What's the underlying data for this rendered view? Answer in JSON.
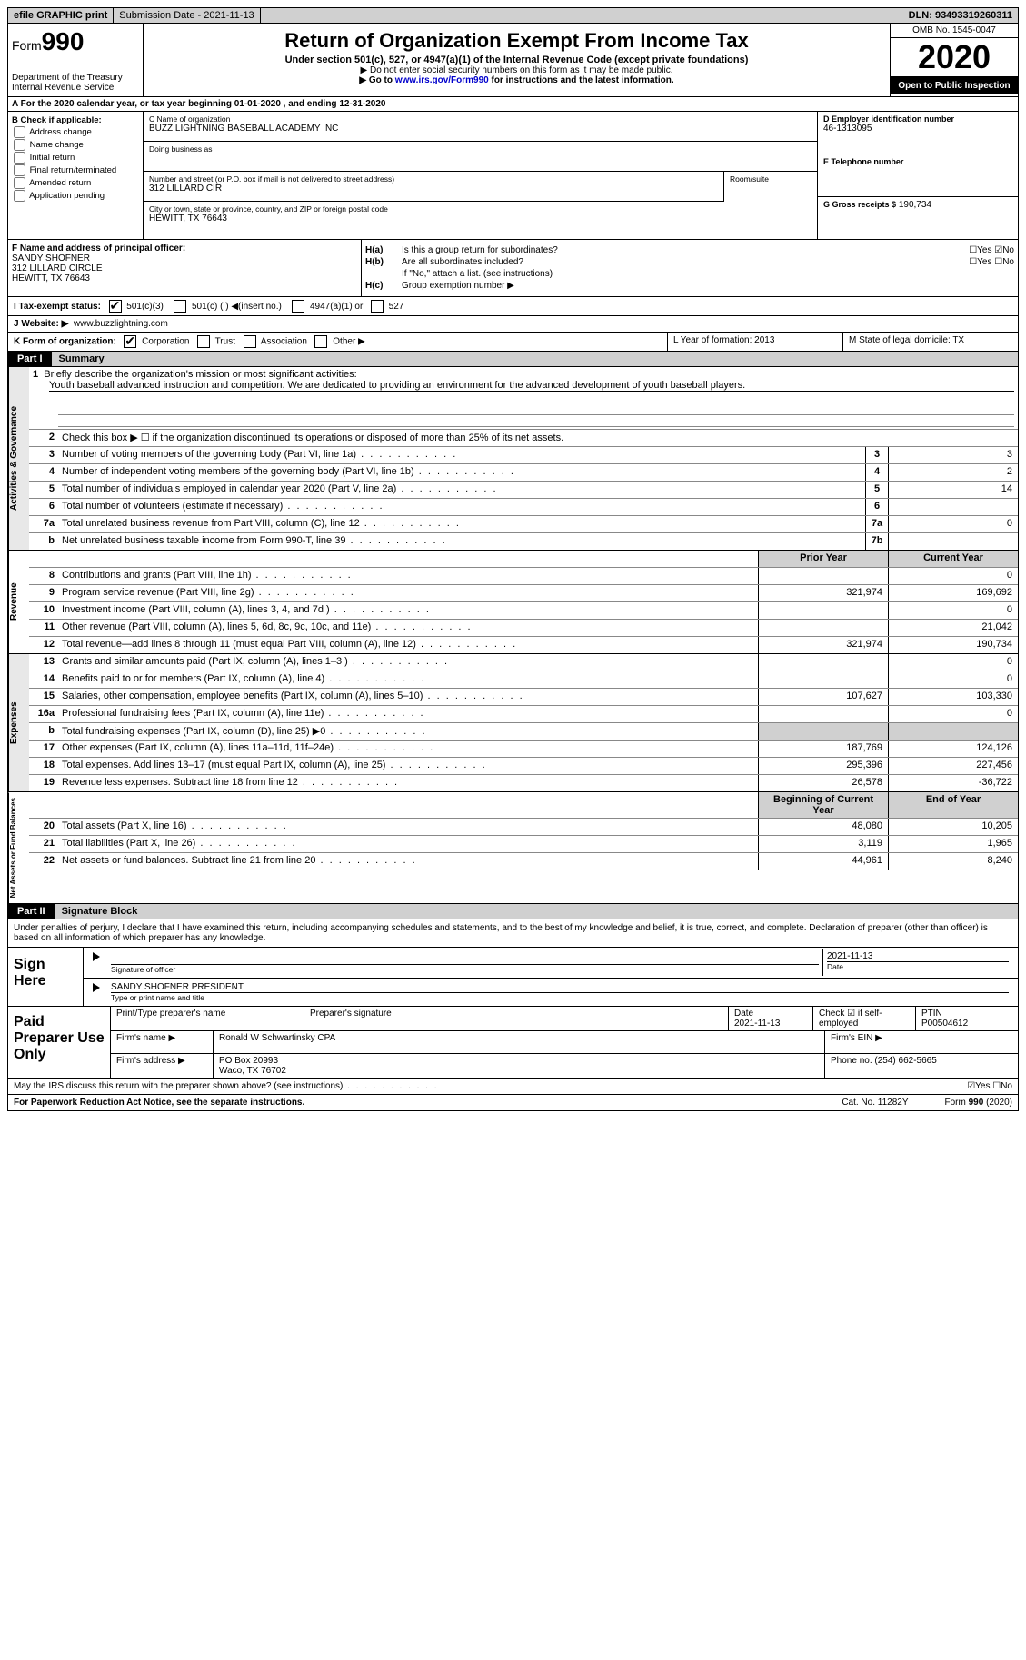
{
  "topbar": {
    "efile": "efile GRAPHIC print",
    "submission": "Submission Date - 2021-11-13",
    "dln": "DLN: 93493319260311"
  },
  "header": {
    "form_word": "Form",
    "form_num": "990",
    "dept": "Department of the Treasury\nInternal Revenue Service",
    "title": "Return of Organization Exempt From Income Tax",
    "sub": "Under section 501(c), 527, or 4947(a)(1) of the Internal Revenue Code (except private foundations)",
    "note1": "▶ Do not enter social security numbers on this form as it may be made public.",
    "note2_pre": "▶ Go to ",
    "note2_link": "www.irs.gov/Form990",
    "note2_post": " for instructions and the latest information.",
    "omb": "OMB No. 1545-0047",
    "year": "2020",
    "inspection": "Open to Public Inspection"
  },
  "row_a": "A For the 2020 calendar year, or tax year beginning 01-01-2020    , and ending 12-31-2020",
  "col_b": {
    "hdr": "B Check if applicable:",
    "items": [
      "Address change",
      "Name change",
      "Initial return",
      "Final return/terminated",
      "Amended return",
      "Application pending"
    ]
  },
  "col_c": {
    "name_lbl": "C Name of organization",
    "name": "BUZZ LIGHTNING BASEBALL ACADEMY INC",
    "dba_lbl": "Doing business as",
    "dba": "",
    "addr_lbl": "Number and street (or P.O. box if mail is not delivered to street address)",
    "addr": "312 LILLARD CIR",
    "room_lbl": "Room/suite",
    "city_lbl": "City or town, state or province, country, and ZIP or foreign postal code",
    "city": "HEWITT, TX  76643"
  },
  "col_d": {
    "ein_lbl": "D Employer identification number",
    "ein": "46-1313095",
    "tel_lbl": "E Telephone number",
    "tel": "",
    "gross_lbl": "G Gross receipts $",
    "gross": "190,734"
  },
  "col_f": {
    "lbl": "F  Name and address of principal officer:",
    "name": "SANDY SHOFNER",
    "addr1": "312 LILLARD CIRCLE",
    "addr2": "HEWITT, TX  76643"
  },
  "col_h": {
    "ha_lbl": "H(a)",
    "ha_txt": "Is this a group return for subordinates?",
    "ha_ans": "☐Yes  ☑No",
    "hb_lbl": "H(b)",
    "hb_txt": "Are all subordinates included?",
    "hb_ans": "☐Yes  ☐No",
    "hb_note": "If \"No,\" attach a list. (see instructions)",
    "hc_lbl": "H(c)",
    "hc_txt": "Group exemption number ▶"
  },
  "tax_status": {
    "lbl": "I   Tax-exempt status:",
    "o1": "501(c)(3)",
    "o2": "501(c) (  ) ◀(insert no.)",
    "o3": "4947(a)(1) or",
    "o4": "527"
  },
  "website": {
    "lbl": "J   Website: ▶",
    "val": "www.buzzlightning.com"
  },
  "k_row": {
    "lbl": "K Form of organization:",
    "o1": "Corporation",
    "o2": "Trust",
    "o3": "Association",
    "o4": "Other ▶"
  },
  "lm": {
    "l": "L Year of formation: 2013",
    "m": "M State of legal domicile: TX"
  },
  "part1": {
    "tag": "Part I",
    "title": "Summary"
  },
  "mission": {
    "num": "1",
    "lbl": "Briefly describe the organization's mission or most significant activities:",
    "txt": "Youth baseball advanced instruction and competition. We are dedicated to providing an environment for the advanced development of youth baseball players."
  },
  "line2": {
    "num": "2",
    "txt": "Check this box ▶ ☐  if the organization discontinued its operations or disposed of more than 25% of its net assets."
  },
  "gov_rows": [
    {
      "num": "3",
      "txt": "Number of voting members of the governing body (Part VI, line 1a)",
      "box": "3",
      "val": "3"
    },
    {
      "num": "4",
      "txt": "Number of independent voting members of the governing body (Part VI, line 1b)",
      "box": "4",
      "val": "2"
    },
    {
      "num": "5",
      "txt": "Total number of individuals employed in calendar year 2020 (Part V, line 2a)",
      "box": "5",
      "val": "14"
    },
    {
      "num": "6",
      "txt": "Total number of volunteers (estimate if necessary)",
      "box": "6",
      "val": ""
    },
    {
      "num": "7a",
      "txt": "Total unrelated business revenue from Part VIII, column (C), line 12",
      "box": "7a",
      "val": "0"
    },
    {
      "num": "b",
      "txt": "Net unrelated business taxable income from Form 990-T, line 39",
      "box": "7b",
      "val": ""
    }
  ],
  "col_hdr": {
    "prev": "Prior Year",
    "curr": "Current Year"
  },
  "rev_rows": [
    {
      "num": "8",
      "txt": "Contributions and grants (Part VIII, line 1h)",
      "prev": "",
      "curr": "0"
    },
    {
      "num": "9",
      "txt": "Program service revenue (Part VIII, line 2g)",
      "prev": "321,974",
      "curr": "169,692"
    },
    {
      "num": "10",
      "txt": "Investment income (Part VIII, column (A), lines 3, 4, and 7d )",
      "prev": "",
      "curr": "0"
    },
    {
      "num": "11",
      "txt": "Other revenue (Part VIII, column (A), lines 5, 6d, 8c, 9c, 10c, and 11e)",
      "prev": "",
      "curr": "21,042"
    },
    {
      "num": "12",
      "txt": "Total revenue—add lines 8 through 11 (must equal Part VIII, column (A), line 12)",
      "prev": "321,974",
      "curr": "190,734"
    }
  ],
  "exp_rows": [
    {
      "num": "13",
      "txt": "Grants and similar amounts paid (Part IX, column (A), lines 1–3 )",
      "prev": "",
      "curr": "0"
    },
    {
      "num": "14",
      "txt": "Benefits paid to or for members (Part IX, column (A), line 4)",
      "prev": "",
      "curr": "0"
    },
    {
      "num": "15",
      "txt": "Salaries, other compensation, employee benefits (Part IX, column (A), lines 5–10)",
      "prev": "107,627",
      "curr": "103,330"
    },
    {
      "num": "16a",
      "txt": "Professional fundraising fees (Part IX, column (A), line 11e)",
      "prev": "",
      "curr": "0"
    },
    {
      "num": "b",
      "txt": "Total fundraising expenses (Part IX, column (D), line 25) ▶0",
      "prev": "shade",
      "curr": "shade"
    },
    {
      "num": "17",
      "txt": "Other expenses (Part IX, column (A), lines 11a–11d, 11f–24e)",
      "prev": "187,769",
      "curr": "124,126"
    },
    {
      "num": "18",
      "txt": "Total expenses. Add lines 13–17 (must equal Part IX, column (A), line 25)",
      "prev": "295,396",
      "curr": "227,456"
    },
    {
      "num": "19",
      "txt": "Revenue less expenses. Subtract line 18 from line 12",
      "prev": "26,578",
      "curr": "-36,722"
    }
  ],
  "na_hdr": {
    "prev": "Beginning of Current Year",
    "curr": "End of Year"
  },
  "na_rows": [
    {
      "num": "20",
      "txt": "Total assets (Part X, line 16)",
      "prev": "48,080",
      "curr": "10,205"
    },
    {
      "num": "21",
      "txt": "Total liabilities (Part X, line 26)",
      "prev": "3,119",
      "curr": "1,965"
    },
    {
      "num": "22",
      "txt": "Net assets or fund balances. Subtract line 21 from line 20",
      "prev": "44,961",
      "curr": "8,240"
    }
  ],
  "part2": {
    "tag": "Part II",
    "title": "Signature Block"
  },
  "sig": {
    "decl": "Under penalties of perjury, I declare that I have examined this return, including accompanying schedules and statements, and to the best of my knowledge and belief, it is true, correct, and complete. Declaration of preparer (other than officer) is based on all information of which preparer has any knowledge.",
    "sign_here": "Sign Here",
    "sig_officer": "Signature of officer",
    "date": "2021-11-13",
    "date_lbl": "Date",
    "name": "SANDY SHOFNER  PRESIDENT",
    "name_lbl": "Type or print name and title"
  },
  "prep": {
    "lbl": "Paid Preparer Use Only",
    "h1": "Print/Type preparer's name",
    "h2": "Preparer's signature",
    "h3_lbl": "Date",
    "h3": "2021-11-13",
    "h4": "Check ☑ if self-employed",
    "h5_lbl": "PTIN",
    "h5": "P00504612",
    "firm_lbl": "Firm's name    ▶",
    "firm": "Ronald W Schwartinsky CPA",
    "ein_lbl": "Firm's EIN ▶",
    "addr_lbl": "Firm's address ▶",
    "addr": "PO Box 20993",
    "addr2": "Waco, TX  76702",
    "phone_lbl": "Phone no.",
    "phone": "(254) 662-5665"
  },
  "discuss": {
    "txt": "May the IRS discuss this return with the preparer shown above? (see instructions)",
    "ans": "☑Yes  ☐No"
  },
  "footer": {
    "left": "For Paperwork Reduction Act Notice, see the separate instructions.",
    "mid": "Cat. No. 11282Y",
    "right": "Form 990 (2020)"
  },
  "vtabs": {
    "gov": "Activities & Governance",
    "rev": "Revenue",
    "exp": "Expenses",
    "na": "Net Assets or Fund Balances"
  }
}
